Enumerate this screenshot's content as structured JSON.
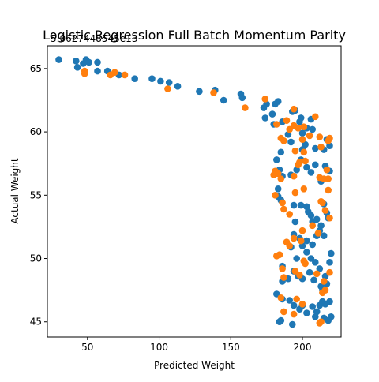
{
  "chart_data": {
    "type": "scatter",
    "title": "Logistic Regression Full Batch Momentum Parity",
    "offset_text": "5.0627448545e13",
    "xlabel": "Predicted Weight",
    "ylabel": "Actual Weight",
    "xlim": [
      22,
      227
    ],
    "ylim": [
      43.8,
      66.8
    ],
    "xticks": [
      50,
      100,
      150,
      200
    ],
    "yticks": [
      45,
      50,
      55,
      60,
      65
    ],
    "grid": false,
    "legend": "none",
    "series": [
      {
        "color": "#1f77b4",
        "points": [
          [
            30,
            65.7
          ],
          [
            42,
            65.6
          ],
          [
            43,
            65.1
          ],
          [
            47,
            65.4
          ],
          [
            49,
            65.7
          ],
          [
            51,
            65.5
          ],
          [
            57,
            65.5
          ],
          [
            57,
            64.8
          ],
          [
            64,
            64.8
          ],
          [
            72,
            64.5
          ],
          [
            83,
            64.2
          ],
          [
            95,
            64.2
          ],
          [
            101,
            64.0
          ],
          [
            107,
            63.9
          ],
          [
            113,
            63.6
          ],
          [
            128,
            63.2
          ],
          [
            139,
            63.3
          ],
          [
            145,
            62.5
          ],
          [
            157,
            63.0
          ],
          [
            158,
            62.7
          ],
          [
            173,
            61.9
          ],
          [
            174,
            61.1
          ],
          [
            175,
            62.2
          ],
          [
            179,
            61.4
          ],
          [
            181,
            62.2
          ],
          [
            183,
            62.4
          ],
          [
            180,
            60.6
          ],
          [
            186,
            60.8
          ],
          [
            190,
            59.8
          ],
          [
            193,
            61.6
          ],
          [
            195,
            61.7
          ],
          [
            198,
            60.8
          ],
          [
            199,
            61.1
          ],
          [
            200,
            59.9
          ],
          [
            203,
            60.3
          ],
          [
            206,
            61.0
          ],
          [
            207,
            60.2
          ],
          [
            192,
            59.2
          ],
          [
            200,
            58.6
          ],
          [
            202,
            59.0
          ],
          [
            209,
            58.7
          ],
          [
            215,
            58.6
          ],
          [
            217,
            59.4
          ],
          [
            219,
            58.9
          ],
          [
            185,
            58.4
          ],
          [
            182,
            57.8
          ],
          [
            184,
            57.0
          ],
          [
            186,
            56.5
          ],
          [
            183,
            55.5
          ],
          [
            192,
            56.6
          ],
          [
            196,
            57.0
          ],
          [
            199,
            57.8
          ],
          [
            203,
            57.2
          ],
          [
            206,
            56.8
          ],
          [
            209,
            57.4
          ],
          [
            213,
            56.1
          ],
          [
            216,
            57.3
          ],
          [
            219,
            56.9
          ],
          [
            183,
            54.9
          ],
          [
            185,
            54.6
          ],
          [
            194,
            54.2
          ],
          [
            199,
            54.2
          ],
          [
            203,
            54.1
          ],
          [
            204,
            53.7
          ],
          [
            206,
            53.4
          ],
          [
            207,
            52.9
          ],
          [
            210,
            53.1
          ],
          [
            213,
            52.6
          ],
          [
            215,
            54.3
          ],
          [
            217,
            53.6
          ],
          [
            218,
            53.2
          ],
          [
            195,
            52.9
          ],
          [
            194,
            51.9
          ],
          [
            198,
            51.6
          ],
          [
            200,
            51.0
          ],
          [
            203,
            51.4
          ],
          [
            207,
            51.1
          ],
          [
            210,
            51.8
          ],
          [
            212,
            52.2
          ],
          [
            215,
            51.8
          ],
          [
            192,
            50.9
          ],
          [
            196,
            50.0
          ],
          [
            203,
            50.5
          ],
          [
            206,
            50.0
          ],
          [
            209,
            49.7
          ],
          [
            212,
            49.2
          ],
          [
            216,
            48.6
          ],
          [
            219,
            49.7
          ],
          [
            220,
            50.4
          ],
          [
            186,
            49.4
          ],
          [
            186,
            48.2
          ],
          [
            190,
            48.4
          ],
          [
            194,
            49.0
          ],
          [
            197,
            48.6
          ],
          [
            200,
            48.4
          ],
          [
            205,
            48.9
          ],
          [
            208,
            48.3
          ],
          [
            213,
            47.8
          ],
          [
            214,
            47.5
          ],
          [
            217,
            48.0
          ],
          [
            182,
            47.2
          ],
          [
            186,
            46.8
          ],
          [
            191,
            46.7
          ],
          [
            194,
            46.3
          ],
          [
            198,
            46.0
          ],
          [
            200,
            46.3
          ],
          [
            203,
            45.7
          ],
          [
            207,
            46.2
          ],
          [
            210,
            45.8
          ],
          [
            212,
            46.3
          ],
          [
            214,
            46.6
          ],
          [
            216,
            46.4
          ],
          [
            219,
            46.6
          ],
          [
            220,
            45.4
          ],
          [
            215,
            45.3
          ],
          [
            218,
            45.1
          ],
          [
            209,
            45.4
          ],
          [
            193,
            44.8
          ],
          [
            185,
            45.1
          ],
          [
            184,
            45.0
          ]
        ]
      },
      {
        "color": "#ff7f0e",
        "points": [
          [
            48,
            64.8
          ],
          [
            48,
            64.6
          ],
          [
            66,
            64.5
          ],
          [
            69,
            64.7
          ],
          [
            76,
            64.5
          ],
          [
            106,
            63.4
          ],
          [
            138,
            63.1
          ],
          [
            160,
            61.9
          ],
          [
            174,
            62.6
          ],
          [
            194,
            61.8
          ],
          [
            182,
            60.6
          ],
          [
            189,
            60.9
          ],
          [
            191,
            60.2
          ],
          [
            194,
            60.5
          ],
          [
            197,
            60.3
          ],
          [
            201,
            60.4
          ],
          [
            205,
            59.7
          ],
          [
            209,
            61.2
          ],
          [
            185,
            59.5
          ],
          [
            187,
            59.3
          ],
          [
            195,
            58.5
          ],
          [
            200,
            59.4
          ],
          [
            212,
            59.6
          ],
          [
            218,
            59.3
          ],
          [
            219,
            59.5
          ],
          [
            213,
            58.8
          ],
          [
            201,
            58.4
          ],
          [
            197,
            57.4
          ],
          [
            198,
            57.6
          ],
          [
            181,
            56.9
          ],
          [
            180,
            56.6
          ],
          [
            183,
            56.7
          ],
          [
            185,
            56.3
          ],
          [
            194,
            56.5
          ],
          [
            202,
            57.7
          ],
          [
            212,
            56.4
          ],
          [
            217,
            57.0
          ],
          [
            215,
            56.3
          ],
          [
            218,
            56.3
          ],
          [
            218,
            55.4
          ],
          [
            195,
            55.2
          ],
          [
            201,
            55.5
          ],
          [
            181,
            55.0
          ],
          [
            186,
            54.4
          ],
          [
            187,
            53.9
          ],
          [
            213,
            54.5
          ],
          [
            214,
            54.4
          ],
          [
            216,
            53.8
          ],
          [
            219,
            53.2
          ],
          [
            191,
            53.5
          ],
          [
            189,
            51.3
          ],
          [
            191,
            51.0
          ],
          [
            200,
            52.2
          ],
          [
            207,
            52.6
          ],
          [
            211,
            52.0
          ],
          [
            194,
            51.6
          ],
          [
            199,
            51.4
          ],
          [
            182,
            50.2
          ],
          [
            184,
            50.3
          ],
          [
            186,
            49.2
          ],
          [
            201,
            49.8
          ],
          [
            202,
            49.6
          ],
          [
            187,
            48.5
          ],
          [
            195,
            49.0
          ],
          [
            198,
            48.7
          ],
          [
            210,
            48.8
          ],
          [
            215,
            48.2
          ],
          [
            219,
            48.9
          ],
          [
            214,
            47.3
          ],
          [
            216,
            47.5
          ],
          [
            185,
            46.9
          ],
          [
            196,
            46.8
          ],
          [
            200,
            46.4
          ],
          [
            187,
            45.8
          ],
          [
            194,
            45.6
          ],
          [
            212,
            44.9
          ],
          [
            213,
            45.0
          ]
        ]
      }
    ]
  }
}
